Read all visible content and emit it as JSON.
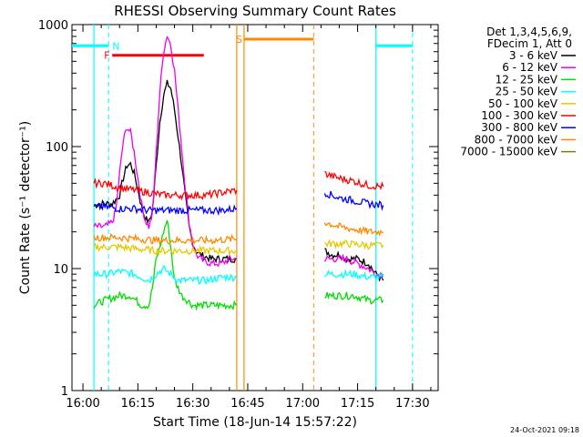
{
  "chart_data": {
    "type": "line",
    "title": "RHESSI Observing Summary Count Rates",
    "xlabel": "Start Time (18-Jun-14 15:57:22)",
    "ylabel": "Count Rate (s⁻¹ detector⁻¹)",
    "yscale": "log",
    "ylim": [
      1,
      1000
    ],
    "xlim_minutes": [
      -3,
      97
    ],
    "x_ticks": [
      "16:00",
      "16:15",
      "16:30",
      "16:45",
      "17:00",
      "17:15",
      "17:30"
    ],
    "y_ticks": [
      "1",
      "10",
      "100",
      "1000"
    ],
    "legend_header": [
      "Det 1,3,4,5,6,9,",
      "FDecim 1, Att 0"
    ],
    "legend_position": "right",
    "series": [
      {
        "name": "3 - 6 keV",
        "color": "#000000",
        "segments": [
          [
            [
              3,
              33
            ],
            [
              5,
              34
            ],
            [
              8,
              34
            ],
            [
              10,
              40
            ],
            [
              11,
              55
            ],
            [
              12,
              70
            ],
            [
              13,
              72
            ],
            [
              14,
              60
            ],
            [
              15,
              45
            ],
            [
              16,
              32
            ],
            [
              17,
              26
            ],
            [
              18,
              24
            ],
            [
              19,
              30
            ],
            [
              20,
              70
            ],
            [
              21,
              160
            ],
            [
              22,
              260
            ],
            [
              23,
              330
            ],
            [
              24,
              300
            ],
            [
              25,
              200
            ],
            [
              26,
              120
            ],
            [
              27,
              70
            ],
            [
              28,
              38
            ],
            [
              29,
              22
            ],
            [
              30,
              16
            ],
            [
              31,
              14
            ],
            [
              32,
              13
            ],
            [
              35,
              12
            ],
            [
              37,
              12
            ],
            [
              40,
              12
            ],
            [
              42,
              12
            ]
          ],
          [
            [
              66,
              14
            ],
            [
              68,
              13
            ],
            [
              70,
              13
            ],
            [
              72,
              12
            ],
            [
              75,
              12
            ],
            [
              78,
              11
            ],
            [
              80,
              9
            ],
            [
              82,
              8
            ]
          ]
        ]
      },
      {
        "name": "6 - 12 keV",
        "color": "#ee00ee",
        "segments": [
          [
            [
              3,
              22
            ],
            [
              6,
              22
            ],
            [
              8,
              24
            ],
            [
              9,
              30
            ],
            [
              10,
              60
            ],
            [
              11,
              110
            ],
            [
              12,
              145
            ],
            [
              13,
              130
            ],
            [
              14,
              90
            ],
            [
              15,
              55
            ],
            [
              16,
              34
            ],
            [
              17,
              25
            ],
            [
              18,
              22
            ],
            [
              19,
              28
            ],
            [
              20,
              90
            ],
            [
              21,
              280
            ],
            [
              22,
              600
            ],
            [
              23,
              820
            ],
            [
              24,
              680
            ],
            [
              25,
              420
            ],
            [
              26,
              200
            ],
            [
              27,
              95
            ],
            [
              28,
              45
            ],
            [
              29,
              24
            ],
            [
              30,
              16
            ],
            [
              31,
              13
            ],
            [
              32,
              12
            ],
            [
              35,
              11
            ],
            [
              38,
              11
            ],
            [
              40,
              12
            ],
            [
              42,
              12
            ]
          ],
          [
            [
              66,
              12
            ],
            [
              68,
              12
            ],
            [
              72,
              12
            ],
            [
              75,
              11
            ],
            [
              78,
              10
            ],
            [
              80,
              9
            ],
            [
              82,
              9
            ]
          ]
        ]
      },
      {
        "name": "12 - 25 keV",
        "color": "#00dd00",
        "segments": [
          [
            [
              3,
              5
            ],
            [
              6,
              5.5
            ],
            [
              10,
              6
            ],
            [
              13,
              6
            ],
            [
              16,
              5
            ],
            [
              18,
              5
            ],
            [
              19,
              7
            ],
            [
              20,
              12
            ],
            [
              21,
              15
            ],
            [
              22,
              20
            ],
            [
              23,
              25
            ],
            [
              24,
              15
            ],
            [
              25,
              8
            ],
            [
              27,
              6
            ],
            [
              30,
              5
            ],
            [
              33,
              5
            ],
            [
              36,
              5
            ],
            [
              39,
              5
            ],
            [
              42,
              5
            ]
          ],
          [
            [
              66,
              6
            ],
            [
              70,
              6
            ],
            [
              74,
              6
            ],
            [
              78,
              5.5
            ],
            [
              82,
              5.5
            ]
          ]
        ]
      },
      {
        "name": "25 - 50 keV",
        "color": "#00ffff",
        "segments": [
          [
            [
              3,
              9
            ],
            [
              7,
              9
            ],
            [
              10,
              9.5
            ],
            [
              14,
              9
            ],
            [
              18,
              8
            ],
            [
              20,
              9
            ],
            [
              22,
              10
            ],
            [
              24,
              9
            ],
            [
              26,
              8
            ],
            [
              30,
              8
            ],
            [
              34,
              8
            ],
            [
              38,
              8.5
            ],
            [
              42,
              8.5
            ]
          ],
          [
            [
              66,
              9
            ],
            [
              70,
              9
            ],
            [
              74,
              9
            ],
            [
              78,
              8.5
            ],
            [
              82,
              8.5
            ]
          ]
        ]
      },
      {
        "name": "50 - 100 keV",
        "color": "#e6c800",
        "segments": [
          [
            [
              3,
              15
            ],
            [
              10,
              15
            ],
            [
              15,
              14.5
            ],
            [
              20,
              14
            ],
            [
              25,
              14
            ],
            [
              30,
              14
            ],
            [
              35,
              14
            ],
            [
              42,
              14
            ]
          ],
          [
            [
              66,
              16
            ],
            [
              72,
              16
            ],
            [
              78,
              15.5
            ],
            [
              82,
              15.5
            ]
          ]
        ]
      },
      {
        "name": "100 - 300 keV",
        "color": "#ff0000",
        "segments": [
          [
            [
              3,
              50
            ],
            [
              6,
              50
            ],
            [
              10,
              46
            ],
            [
              14,
              44
            ],
            [
              18,
              42
            ],
            [
              22,
              40
            ],
            [
              26,
              40
            ],
            [
              30,
              40
            ],
            [
              34,
              40
            ],
            [
              38,
              42
            ],
            [
              42,
              44
            ]
          ],
          [
            [
              66,
              60
            ],
            [
              70,
              55
            ],
            [
              74,
              52
            ],
            [
              78,
              48
            ],
            [
              82,
              47
            ]
          ]
        ]
      },
      {
        "name": "300 - 800 keV",
        "color": "#0000ff",
        "segments": [
          [
            [
              3,
              32
            ],
            [
              6,
              32
            ],
            [
              10,
              31
            ],
            [
              14,
              31
            ],
            [
              18,
              30
            ],
            [
              22,
              30
            ],
            [
              26,
              30
            ],
            [
              30,
              30
            ],
            [
              34,
              30
            ],
            [
              38,
              30
            ],
            [
              42,
              31
            ]
          ],
          [
            [
              66,
              42
            ],
            [
              70,
              38
            ],
            [
              74,
              36
            ],
            [
              78,
              34
            ],
            [
              82,
              33
            ]
          ]
        ]
      },
      {
        "name": "800 - 7000 keV",
        "color": "#ff8800",
        "segments": [
          [
            [
              3,
              18
            ],
            [
              10,
              18
            ],
            [
              15,
              17.5
            ],
            [
              20,
              17
            ],
            [
              25,
              17
            ],
            [
              30,
              17
            ],
            [
              35,
              17
            ],
            [
              42,
              17.5
            ]
          ],
          [
            [
              66,
              24
            ],
            [
              70,
              22
            ],
            [
              74,
              21
            ],
            [
              78,
              20
            ],
            [
              82,
              20
            ]
          ]
        ]
      },
      {
        "name": "7000 - 15000 keV",
        "color": "#808000",
        "segments": []
      }
    ],
    "annotations": [
      {
        "label": "N",
        "color": "#00ffff",
        "type": "night",
        "segments": [
          [
            [
              -3,
              670
            ],
            [
              7,
              670
            ]
          ],
          [
            [
              80,
              670
            ],
            [
              90,
              670
            ]
          ]
        ],
        "solid_lines": [
          3,
          80
        ],
        "dashed_lines": [
          7,
          90
        ]
      },
      {
        "label": "F",
        "color": "#ff0000",
        "type": "flare",
        "segments": [
          [
            [
              8,
              560
            ],
            [
              33,
              560
            ]
          ]
        ]
      },
      {
        "label": "S",
        "color": "#ff8800",
        "type": "saa",
        "segments": [
          [
            [
              44,
              760
            ],
            [
              63,
              760
            ]
          ]
        ],
        "solid_lines": [
          42,
          44
        ],
        "dashed_lines": [
          63
        ]
      }
    ],
    "grid": false
  },
  "footer": {
    "date": "24-Oct-2021 09:18"
  }
}
